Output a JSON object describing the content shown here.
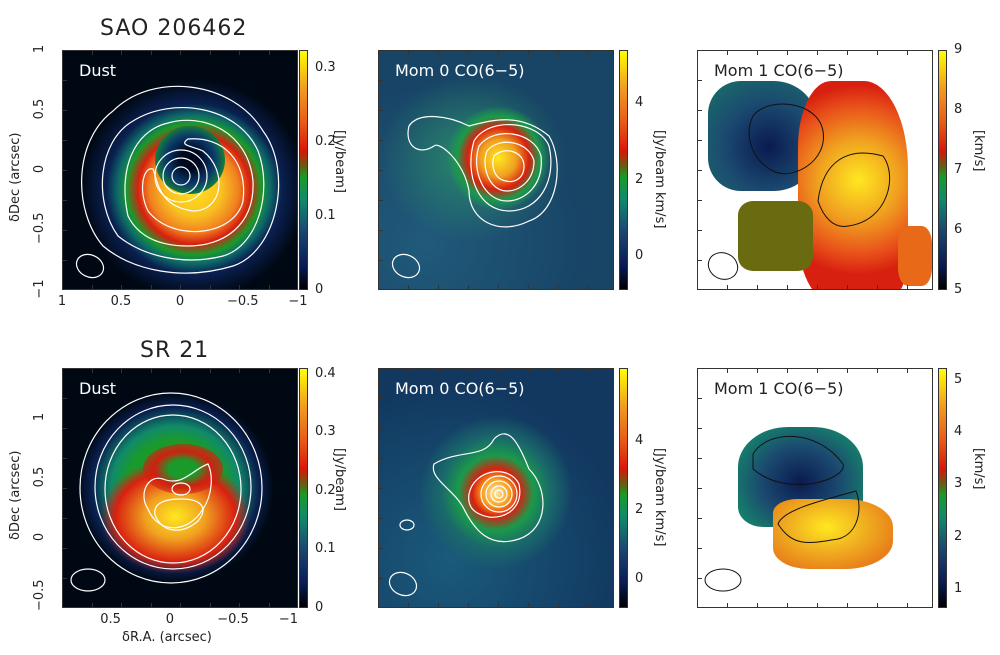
{
  "rows": [
    {
      "title": "SAO 206462"
    },
    {
      "title": "SR 21"
    }
  ],
  "chart_data": [
    {
      "type": "heatmap",
      "panel_label": "Dust",
      "xlim": [
        1,
        -1
      ],
      "ylim": [
        -1,
        1
      ],
      "xticks": [
        "1",
        "0.5",
        "0",
        "−0.5",
        "−1"
      ],
      "xtick_values": [
        1,
        0.5,
        0,
        -0.5,
        -1
      ],
      "yticks": [
        "−1",
        "−0.5",
        "0",
        "0.5",
        "1"
      ],
      "ytick_values": [
        -1,
        -0.5,
        0,
        0.5,
        1
      ],
      "ylabel": "δDec (arcsec)",
      "colorbar": {
        "label": "[Jy/beam]",
        "range": [
          0,
          0.325
        ],
        "ticks": [
          "0",
          "0.1",
          "0.2",
          "0.3"
        ],
        "tick_values": [
          0,
          0.1,
          0.2,
          0.3
        ]
      }
    },
    {
      "type": "heatmap",
      "panel_label": "Mom 0 CO(6−5)",
      "xlim": [
        1,
        -1
      ],
      "ylim": [
        -1,
        1
      ],
      "colorbar": {
        "label": "[Jy/beam km/s]",
        "range": [
          -0.9,
          5.4
        ],
        "ticks": [
          "0",
          "2",
          "4"
        ],
        "tick_values": [
          0,
          2,
          4
        ]
      }
    },
    {
      "type": "heatmap",
      "panel_label": "Mom 1 CO(6−5)",
      "xlim": [
        1,
        -1
      ],
      "ylim": [
        -1,
        1
      ],
      "colorbar": {
        "label": "[km/s]",
        "range": [
          5,
          9
        ],
        "ticks": [
          "5",
          "6",
          "7",
          "8",
          "9"
        ],
        "tick_values": [
          5,
          6,
          7,
          8,
          9
        ]
      }
    },
    {
      "type": "heatmap",
      "panel_label": "Dust",
      "xlim": [
        0.91,
        -1.08
      ],
      "ylim": [
        -0.59,
        1.42
      ],
      "xticks": [
        "0.5",
        "0",
        "−0.5",
        "−1"
      ],
      "xtick_values": [
        0.5,
        0,
        -0.5,
        -1
      ],
      "yticks": [
        "−0.5",
        "0",
        "0.5",
        "1"
      ],
      "ytick_values": [
        -0.5,
        0,
        0.5,
        1
      ],
      "xlabel": "δR.A. (arcsec)",
      "ylabel": "δDec (arcsec)",
      "colorbar": {
        "label": "[Jy/beam]",
        "range": [
          0,
          0.41
        ],
        "ticks": [
          "0",
          "0.1",
          "0.2",
          "0.3",
          "0.4"
        ],
        "tick_values": [
          0,
          0.1,
          0.2,
          0.3,
          0.4
        ]
      }
    },
    {
      "type": "heatmap",
      "panel_label": "Mom 0 CO(6−5)",
      "xlim": [
        0.91,
        -1.08
      ],
      "ylim": [
        -0.59,
        1.42
      ],
      "colorbar": {
        "label": "[Jy/beam km/s]",
        "range": [
          -0.85,
          6.1
        ],
        "ticks": [
          "0",
          "2",
          "4"
        ],
        "tick_values": [
          0,
          2,
          4
        ]
      }
    },
    {
      "type": "heatmap",
      "panel_label": "Mom 1 CO(6−5)",
      "xlim": [
        0.91,
        -1.08
      ],
      "ylim": [
        -0.59,
        1.42
      ],
      "colorbar": {
        "label": "[km/s]",
        "range": [
          0.63,
          5.23
        ],
        "ticks": [
          "1",
          "2",
          "3",
          "4",
          "5"
        ],
        "tick_values": [
          1,
          2,
          3,
          4,
          5
        ]
      }
    }
  ]
}
